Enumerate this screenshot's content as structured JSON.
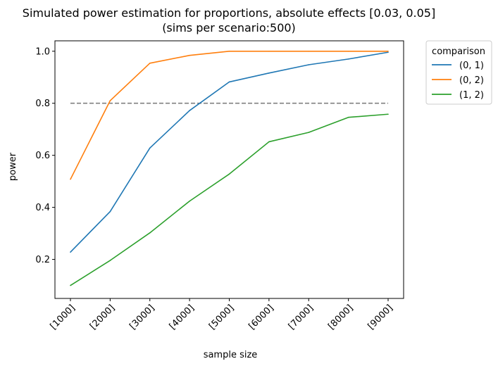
{
  "chart_data": {
    "type": "line",
    "title_line1": "Simulated power estimation for proportions, absolute effects [0.03, 0.05]",
    "title_line2": "(sims per scenario:500)",
    "xlabel": "sample size",
    "ylabel": "power",
    "categories": [
      "[1000]",
      "[2000]",
      "[3000]",
      "[4000]",
      "[5000]",
      "[6000]",
      "[7000]",
      "[8000]",
      "[9000]"
    ],
    "ylim": [
      0.05,
      1.04
    ],
    "yticks": [
      0.2,
      0.4,
      0.6,
      0.8,
      1.0
    ],
    "ytick_labels": [
      "0.2",
      "0.4",
      "0.6",
      "0.8",
      "1.0"
    ],
    "grid": false,
    "legend_title": "comparison",
    "legend_position": "outside-top-right",
    "threshold": {
      "value": 0.8,
      "style": "dashed",
      "color": "#808080"
    },
    "series": [
      {
        "name": "(0, 1)",
        "color": "#1f77b4",
        "values": [
          0.228,
          0.384,
          0.628,
          0.772,
          0.882,
          0.916,
          0.948,
          0.97,
          0.996
        ]
      },
      {
        "name": "(0, 2)",
        "color": "#ff7f0e",
        "values": [
          0.508,
          0.81,
          0.954,
          0.984,
          1.0,
          1.0,
          1.0,
          1.0,
          1.0
        ]
      },
      {
        "name": "(1, 2)",
        "color": "#2ca02c",
        "values": [
          0.1,
          0.196,
          0.302,
          0.424,
          0.528,
          0.652,
          0.688,
          0.746,
          0.758
        ]
      }
    ]
  }
}
